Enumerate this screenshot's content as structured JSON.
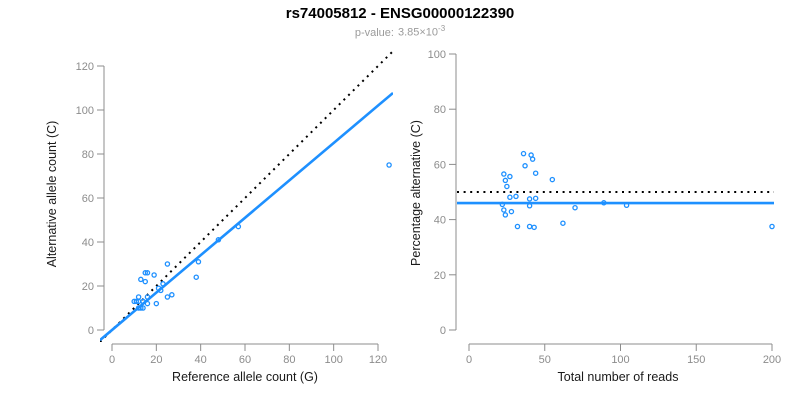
{
  "title": "rs74005812 - ENSG00000122390",
  "subtitle": {
    "label": "p-value:",
    "value": "3.85×10",
    "exponent": "-3"
  },
  "colors": {
    "accent": "#1e90ff",
    "axis": "#8c8c8c",
    "tick_label": "#8c8c8c",
    "axis_title": "#1a1a1a",
    "reference_line": "#000000",
    "title": "#000000",
    "subtitle": "#9b9b9b"
  },
  "chart_data": [
    {
      "type": "scatter",
      "panel": "left",
      "xlabel": "Reference allele count (G)",
      "ylabel": "Alternative allele count (C)",
      "xlim": [
        0,
        120
      ],
      "ylim": [
        0,
        120
      ],
      "xticks": [
        0,
        20,
        40,
        60,
        80,
        100,
        120
      ],
      "yticks": [
        0,
        20,
        40,
        60,
        80,
        100,
        120
      ],
      "grid": false,
      "legend": "none",
      "points": {
        "x": [
          13,
          15,
          16,
          15,
          19,
          12,
          10,
          11,
          25,
          12,
          14,
          16,
          21,
          23,
          12,
          22,
          13,
          14,
          16,
          20,
          25,
          27,
          48,
          57,
          39,
          38,
          125
        ],
        "y": [
          23,
          26,
          26,
          22,
          25,
          15,
          13,
          13,
          30,
          13,
          13,
          15,
          19,
          21,
          10,
          18,
          10,
          10,
          12,
          12,
          15,
          16,
          41,
          47,
          31,
          24,
          75
        ]
      },
      "lines": [
        {
          "name": "identity-line",
          "style": "dotted",
          "color": "#000000",
          "slope": 1,
          "intercept": 0
        },
        {
          "name": "fit-line",
          "style": "solid",
          "color": "#1e90ff",
          "slope": 0.85,
          "intercept": 0
        }
      ]
    },
    {
      "type": "scatter",
      "panel": "right",
      "xlabel": "Total number of reads",
      "ylabel": "Percentage alternative (C)",
      "xlim": [
        0,
        200
      ],
      "ylim": [
        0,
        100
      ],
      "xticks": [
        0,
        50,
        100,
        150,
        200
      ],
      "yticks": [
        0,
        20,
        40,
        60,
        80,
        100
      ],
      "grid": false,
      "legend": "none",
      "points": {
        "x": [
          36,
          41,
          42,
          37,
          44,
          27,
          23,
          24,
          55,
          25,
          27,
          31,
          40,
          44,
          22,
          40,
          23,
          24,
          28,
          32,
          40,
          43,
          89,
          104,
          70,
          62,
          200
        ],
        "y": [
          63.9,
          63.4,
          61.9,
          59.5,
          56.8,
          55.6,
          56.5,
          54.2,
          54.5,
          52.0,
          48.1,
          48.4,
          47.5,
          47.7,
          45.5,
          45.0,
          43.5,
          41.7,
          42.9,
          37.5,
          37.5,
          37.2,
          46.1,
          45.2,
          44.3,
          38.7,
          37.5
        ]
      },
      "lines": [
        {
          "name": "null-line",
          "style": "dotted",
          "color": "#000000",
          "h": 50
        },
        {
          "name": "mean-line",
          "style": "solid",
          "color": "#1e90ff",
          "h": 46
        }
      ]
    }
  ]
}
